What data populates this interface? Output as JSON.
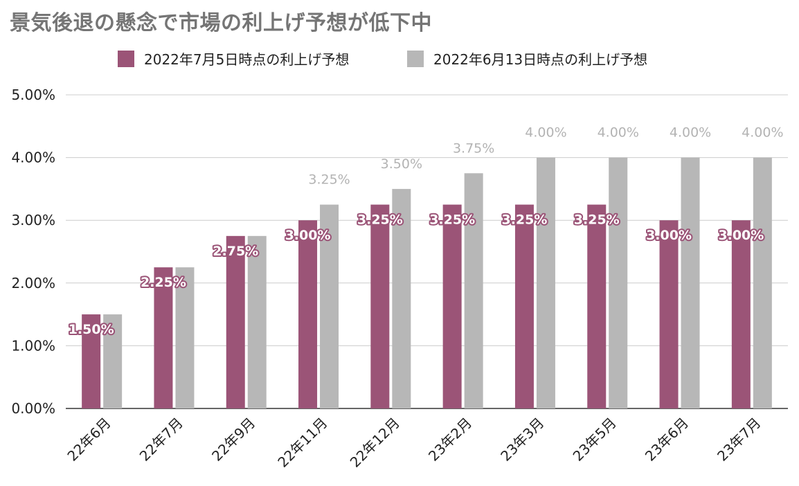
{
  "chart_data": {
    "type": "bar",
    "title": "景気後退の懸念で市場の利上げ予想が低下中",
    "xlabel": "",
    "ylabel": "",
    "ylim": [
      0,
      5
    ],
    "y_ticks": [
      "0.00%",
      "1.00%",
      "2.00%",
      "3.00%",
      "4.00%",
      "5.00%"
    ],
    "grid": true,
    "legend_position": "top-center",
    "categories": [
      "22年6月",
      "22年7月",
      "22年9月",
      "22年11月",
      "22年12月",
      "23年2月",
      "23年3月",
      "23年5月",
      "23年6月",
      "23年7月"
    ],
    "series": [
      {
        "name": "2022年7月5日時点の利上げ予想",
        "color": "#9b5477",
        "values": [
          1.5,
          2.25,
          2.75,
          3.0,
          3.25,
          3.25,
          3.25,
          3.25,
          3.0,
          3.0
        ],
        "labels": [
          "1.50%",
          "2.25%",
          "2.75%",
          "3.00%",
          "3.25%",
          "3.25%",
          "3.25%",
          "3.25%",
          "3.00%",
          "3.00%"
        ]
      },
      {
        "name": "2022年6月13日時点の利上げ予想",
        "color": "#b7b7b7",
        "values": [
          1.5,
          2.25,
          2.75,
          3.25,
          3.5,
          3.75,
          4.0,
          4.0,
          4.0,
          4.0
        ],
        "labels": [
          "",
          "",
          "",
          "3.25%",
          "3.50%",
          "3.75%",
          "4.00%",
          "4.00%",
          "4.00%",
          "4.00%"
        ]
      }
    ]
  }
}
